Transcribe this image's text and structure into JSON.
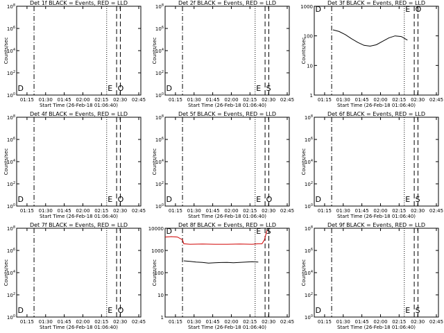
{
  "figure": {
    "panel_xlabel": "Start Time (26-Feb-18 01:06:40)",
    "panel_ylabel": "Counts/sec",
    "time_ticks": [
      "01:15",
      "01:30",
      "01:45",
      "02:00",
      "02:15",
      "02:30",
      "02:45"
    ],
    "colors": {
      "events": "#000000",
      "lld": "#d00000",
      "axes": "#000000"
    }
  },
  "chart_data": [
    {
      "type": "line",
      "title": "Det 1f BLACK = Events, RED = LLD",
      "x_unit": "minutes after 01:06:40",
      "xlim": [
        0,
        100
      ],
      "yscale": "log",
      "ylim": [
        1,
        100000000
      ],
      "ytick_labels": [
        "10^0",
        "10^2",
        "10^4",
        "10^6",
        "10^8"
      ],
      "xlabel": "Start Time (26-Feb-18 01:06:40)",
      "ylabel": "Counts/sec",
      "markers": [
        {
          "x": 0,
          "style": "dash",
          "label": "D"
        },
        {
          "x": 14.0,
          "style": "dashdot",
          "label": ""
        },
        {
          "x": 72.5,
          "style": "dot",
          "label": "E"
        },
        {
          "x": 80.5,
          "style": "dash",
          "label": "O"
        },
        {
          "x": 83.5,
          "style": "dash",
          "label": ""
        }
      ],
      "series": []
    },
    {
      "type": "line",
      "title": "Det 2f BLACK = Events, RED = LLD",
      "x_unit": "minutes after 01:06:40",
      "xlim": [
        0,
        100
      ],
      "yscale": "log",
      "ylim": [
        1,
        100000000
      ],
      "ytick_labels": [
        "10^0",
        "10^2",
        "10^4",
        "10^6",
        "10^8"
      ],
      "xlabel": "Start Time (26-Feb-18 01:06:40)",
      "ylabel": "Counts/sec",
      "markers": [
        {
          "x": 0,
          "style": "dash",
          "label": "D"
        },
        {
          "x": 14.0,
          "style": "dashdot",
          "label": ""
        },
        {
          "x": 72.5,
          "style": "dot",
          "label": "E"
        },
        {
          "x": 80.5,
          "style": "dash",
          "label": "S"
        },
        {
          "x": 83.5,
          "style": "dash",
          "label": ""
        }
      ],
      "series": []
    },
    {
      "type": "line",
      "title": "Det 3f BLACK = Events, RED = LLD",
      "x_unit": "minutes after 01:06:40",
      "xlim": [
        0,
        100
      ],
      "yscale": "log",
      "ylim": [
        1,
        1000
      ],
      "ytick_labels": [
        "1",
        "10",
        "100",
        "1000"
      ],
      "xlabel": "Start Time (26-Feb-18 01:06:40)",
      "ylabel": "Counts/sec",
      "markers": [
        {
          "x": 0,
          "style": "dash",
          "label": "D"
        },
        {
          "x": 14.0,
          "style": "dashdot",
          "label": ""
        },
        {
          "x": 72.5,
          "style": "dot",
          "label": "E"
        },
        {
          "x": 80.5,
          "style": "dash",
          "label": "O"
        },
        {
          "x": 83.5,
          "style": "dash",
          "label": ""
        }
      ],
      "series": [
        {
          "color": "#000000",
          "x": [
            15,
            20,
            25,
            30,
            35,
            40,
            45,
            50,
            55,
            60,
            65,
            70,
            72,
            75
          ],
          "y": [
            160,
            140,
            110,
            80,
            60,
            48,
            45,
            50,
            65,
            85,
            100,
            95,
            85,
            72
          ]
        }
      ]
    },
    {
      "type": "line",
      "title": "Det 4f BLACK = Events, RED = LLD",
      "x_unit": "minutes after 01:06:40",
      "xlim": [
        0,
        100
      ],
      "yscale": "log",
      "ylim": [
        1,
        100000000
      ],
      "ytick_labels": [
        "10^0",
        "10^2",
        "10^4",
        "10^6",
        "10^8"
      ],
      "xlabel": "Start Time (26-Feb-18 01:06:40)",
      "ylabel": "Counts/sec",
      "markers": [
        {
          "x": 0,
          "style": "dash",
          "label": "D"
        },
        {
          "x": 14.0,
          "style": "dashdot",
          "label": ""
        },
        {
          "x": 72.5,
          "style": "dot",
          "label": "E"
        },
        {
          "x": 80.5,
          "style": "dash",
          "label": "O"
        },
        {
          "x": 83.5,
          "style": "dash",
          "label": ""
        }
      ],
      "series": []
    },
    {
      "type": "line",
      "title": "Det 5f BLACK = Events, RED = LLD",
      "x_unit": "minutes after 01:06:40",
      "xlim": [
        0,
        100
      ],
      "yscale": "log",
      "ylim": [
        1,
        100000000
      ],
      "ytick_labels": [
        "10^0",
        "10^2",
        "10^4",
        "10^6",
        "10^8"
      ],
      "xlabel": "Start Time (26-Feb-18 01:06:40)",
      "ylabel": "Counts/sec",
      "markers": [
        {
          "x": 0,
          "style": "dash",
          "label": "D"
        },
        {
          "x": 14.0,
          "style": "dashdot",
          "label": ""
        },
        {
          "x": 72.5,
          "style": "dot",
          "label": "E"
        },
        {
          "x": 80.5,
          "style": "dash",
          "label": "O"
        },
        {
          "x": 83.5,
          "style": "dash",
          "label": ""
        }
      ],
      "series": []
    },
    {
      "type": "line",
      "title": "Det 6f BLACK = Events, RED = LLD",
      "x_unit": "minutes after 01:06:40",
      "xlim": [
        0,
        100
      ],
      "yscale": "log",
      "ylim": [
        1,
        100000000
      ],
      "ytick_labels": [
        "10^0",
        "10^2",
        "10^4",
        "10^6",
        "10^8"
      ],
      "xlabel": "Start Time (26-Feb-18 01:06:40)",
      "ylabel": "Counts/sec",
      "markers": [
        {
          "x": 0,
          "style": "dash",
          "label": "D"
        },
        {
          "x": 14.0,
          "style": "dashdot",
          "label": ""
        },
        {
          "x": 72.5,
          "style": "dot",
          "label": "E"
        },
        {
          "x": 80.5,
          "style": "dash",
          "label": "S"
        },
        {
          "x": 83.5,
          "style": "dash",
          "label": ""
        }
      ],
      "series": []
    },
    {
      "type": "line",
      "title": "Det 7f BLACK = Events, RED = LLD",
      "x_unit": "minutes after 01:06:40",
      "xlim": [
        0,
        100
      ],
      "yscale": "log",
      "ylim": [
        1,
        100000000
      ],
      "ytick_labels": [
        "10^0",
        "10^2",
        "10^4",
        "10^6",
        "10^8"
      ],
      "xlabel": "Start Time (26-Feb-18 01:06:40)",
      "ylabel": "Counts/sec",
      "markers": [
        {
          "x": 0,
          "style": "dash",
          "label": "D"
        },
        {
          "x": 14.0,
          "style": "dashdot",
          "label": ""
        },
        {
          "x": 72.5,
          "style": "dot",
          "label": "E"
        },
        {
          "x": 80.5,
          "style": "dash",
          "label": "O"
        },
        {
          "x": 83.5,
          "style": "dash",
          "label": ""
        }
      ],
      "series": []
    },
    {
      "type": "line",
      "title": "Det 8f BLACK = Events, RED = LLD",
      "x_unit": "minutes after 01:06:40",
      "xlim": [
        0,
        100
      ],
      "yscale": "log",
      "ylim": [
        1,
        10000
      ],
      "ytick_labels": [
        "1",
        "10",
        "100",
        "1000",
        "10000"
      ],
      "xlabel": "Start Time (26-Feb-18 01:06:40)",
      "ylabel": "Counts/sec",
      "markers": [
        {
          "x": 0,
          "style": "dash",
          "label": "D"
        },
        {
          "x": 14.0,
          "style": "dashdot",
          "label": ""
        },
        {
          "x": 72.5,
          "style": "dot",
          "label": "E"
        },
        {
          "x": 80.5,
          "style": "dash",
          "label": "S"
        },
        {
          "x": 83.5,
          "style": "dash",
          "label": ""
        }
      ],
      "series": [
        {
          "color": "#d00000",
          "x": [
            0,
            5,
            10,
            14,
            15,
            20,
            30,
            40,
            50,
            60,
            70,
            75,
            78,
            80,
            82
          ],
          "y": [
            4000,
            4200,
            4000,
            3000,
            2000,
            1900,
            1950,
            1900,
            1900,
            1950,
            1900,
            2000,
            2000,
            3000,
            8000
          ]
        },
        {
          "color": "#000000",
          "x": [
            15,
            20,
            25,
            30,
            35,
            40,
            45,
            50,
            55,
            60,
            65,
            70,
            75
          ],
          "y": [
            340,
            320,
            300,
            290,
            270,
            280,
            285,
            290,
            280,
            290,
            300,
            310,
            300
          ]
        }
      ]
    },
    {
      "type": "line",
      "title": "Det 9f BLACK = Events, RED = LLD",
      "x_unit": "minutes after 01:06:40",
      "xlim": [
        0,
        100
      ],
      "yscale": "log",
      "ylim": [
        1,
        100000000
      ],
      "ytick_labels": [
        "10^0",
        "10^2",
        "10^4",
        "10^6",
        "10^8"
      ],
      "xlabel": "Start Time (26-Feb-18 01:06:40)",
      "ylabel": "Counts/sec",
      "markers": [
        {
          "x": 0,
          "style": "dash",
          "label": "D"
        },
        {
          "x": 14.0,
          "style": "dashdot",
          "label": ""
        },
        {
          "x": 72.5,
          "style": "dot",
          "label": "E"
        },
        {
          "x": 80.5,
          "style": "dash",
          "label": "S"
        },
        {
          "x": 83.5,
          "style": "dash",
          "label": ""
        }
      ],
      "series": []
    }
  ]
}
